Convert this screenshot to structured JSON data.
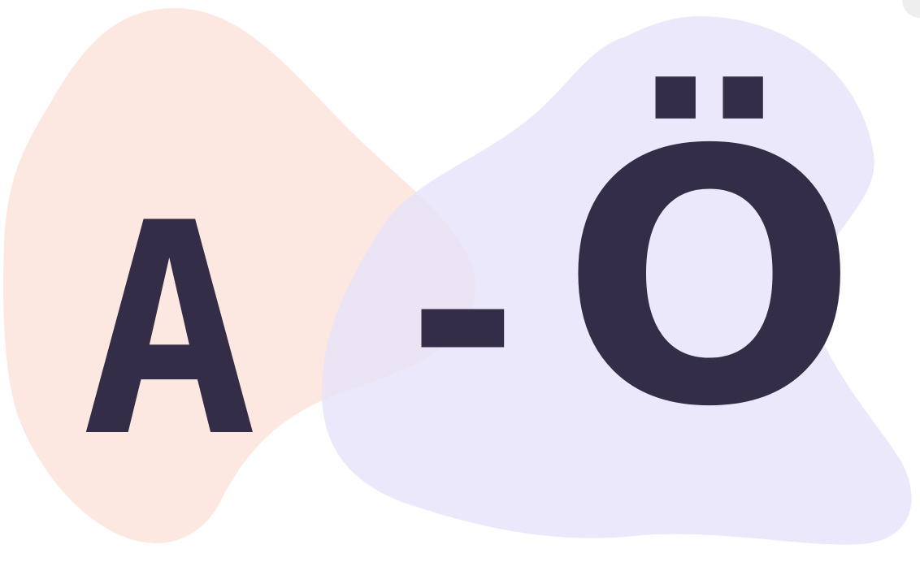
{
  "letters": {
    "start": "A",
    "separator": "-",
    "end": "Ö"
  },
  "colors": {
    "text": "#332D47",
    "blob_left": "#FCE4DC",
    "blob_right": "#E6E2FA",
    "background": "#FFFFFF"
  }
}
